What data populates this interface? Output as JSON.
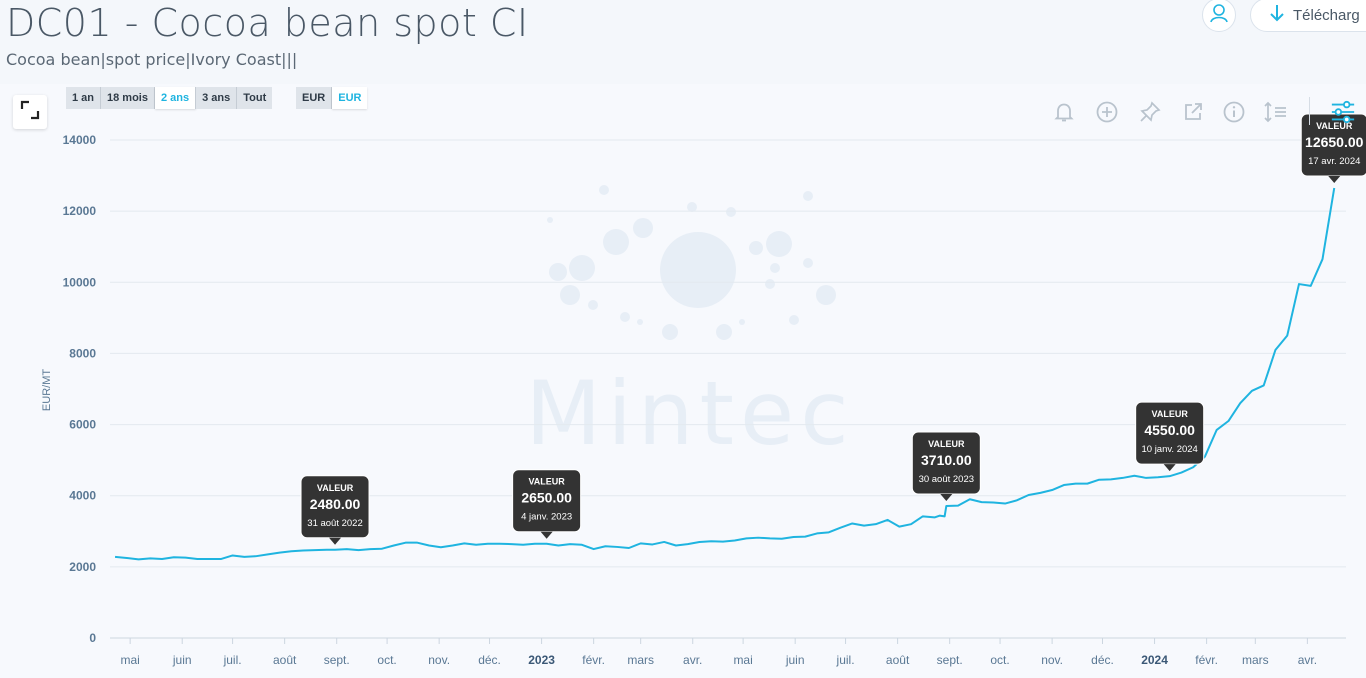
{
  "header": {
    "title": "DC01 - Cocoa bean spot CI",
    "subtitle": "Cocoa bean|spot price|Ivory Coast|||",
    "download_label": "Télécharg"
  },
  "toolbar": {
    "ranges": [
      "1 an",
      "18 mois",
      "2 ans",
      "3 ans",
      "Tout"
    ],
    "active_range": "2 ans",
    "currencies": [
      "EUR",
      "EUR"
    ],
    "active_currency_index": 1,
    "icons": [
      "bell-icon",
      "add-circle-icon",
      "pin-icon",
      "external-link-icon",
      "info-icon",
      "sort-lines-icon",
      "settings-sliders-icon"
    ]
  },
  "colors": {
    "line": "#1fb4e0",
    "tooltip_bg": "#333333",
    "accent": "#1fb4e0",
    "watermark": "#e7eef6"
  },
  "watermark": "Mintec",
  "chart_data": {
    "type": "line",
    "ylabel": "EUR/MT",
    "ylim": [
      0,
      14000
    ],
    "yticks": [
      0,
      2000,
      4000,
      6000,
      8000,
      10000,
      12000,
      14000
    ],
    "xlim": [
      "2022-04-19",
      "2024-04-24"
    ],
    "xticks": [
      {
        "label": "mai",
        "date": "2022-05-01",
        "bold": false
      },
      {
        "label": "juin",
        "date": "2022-06-01",
        "bold": false
      },
      {
        "label": "juil.",
        "date": "2022-07-01",
        "bold": false
      },
      {
        "label": "août",
        "date": "2022-08-01",
        "bold": false
      },
      {
        "label": "sept.",
        "date": "2022-09-01",
        "bold": false
      },
      {
        "label": "oct.",
        "date": "2022-10-01",
        "bold": false
      },
      {
        "label": "nov.",
        "date": "2022-11-01",
        "bold": false
      },
      {
        "label": "déc.",
        "date": "2022-12-01",
        "bold": false
      },
      {
        "label": "2023",
        "date": "2023-01-01",
        "bold": true
      },
      {
        "label": "févr.",
        "date": "2023-02-01",
        "bold": false
      },
      {
        "label": "mars",
        "date": "2023-03-01",
        "bold": false
      },
      {
        "label": "avr.",
        "date": "2023-04-01",
        "bold": false
      },
      {
        "label": "mai",
        "date": "2023-05-01",
        "bold": false
      },
      {
        "label": "juin",
        "date": "2023-06-01",
        "bold": false
      },
      {
        "label": "juil.",
        "date": "2023-07-01",
        "bold": false
      },
      {
        "label": "août",
        "date": "2023-08-01",
        "bold": false
      },
      {
        "label": "sept.",
        "date": "2023-09-01",
        "bold": false
      },
      {
        "label": "oct.",
        "date": "2023-10-01",
        "bold": false
      },
      {
        "label": "nov.",
        "date": "2023-11-01",
        "bold": false
      },
      {
        "label": "déc.",
        "date": "2023-12-01",
        "bold": false
      },
      {
        "label": "2024",
        "date": "2024-01-01",
        "bold": true
      },
      {
        "label": "févr.",
        "date": "2024-02-01",
        "bold": false
      },
      {
        "label": "mars",
        "date": "2024-03-01",
        "bold": false
      },
      {
        "label": "avr.",
        "date": "2024-04-01",
        "bold": false
      }
    ],
    "series": [
      {
        "points": [
          [
            "2022-04-22",
            2280
          ],
          [
            "2022-04-29",
            2250
          ],
          [
            "2022-05-06",
            2210
          ],
          [
            "2022-05-13",
            2240
          ],
          [
            "2022-05-20",
            2220
          ],
          [
            "2022-05-27",
            2270
          ],
          [
            "2022-06-03",
            2260
          ],
          [
            "2022-06-10",
            2220
          ],
          [
            "2022-06-17",
            2220
          ],
          [
            "2022-06-24",
            2220
          ],
          [
            "2022-07-01",
            2320
          ],
          [
            "2022-07-08",
            2280
          ],
          [
            "2022-07-15",
            2300
          ],
          [
            "2022-07-22",
            2350
          ],
          [
            "2022-07-29",
            2400
          ],
          [
            "2022-08-05",
            2440
          ],
          [
            "2022-08-12",
            2460
          ],
          [
            "2022-08-19",
            2470
          ],
          [
            "2022-08-26",
            2480
          ],
          [
            "2022-08-31",
            2480
          ],
          [
            "2022-09-07",
            2500
          ],
          [
            "2022-09-14",
            2470
          ],
          [
            "2022-09-21",
            2500
          ],
          [
            "2022-09-28",
            2510
          ],
          [
            "2022-10-05",
            2600
          ],
          [
            "2022-10-12",
            2680
          ],
          [
            "2022-10-19",
            2680
          ],
          [
            "2022-10-26",
            2600
          ],
          [
            "2022-11-02",
            2550
          ],
          [
            "2022-11-09",
            2600
          ],
          [
            "2022-11-16",
            2660
          ],
          [
            "2022-11-23",
            2620
          ],
          [
            "2022-11-30",
            2650
          ],
          [
            "2022-12-07",
            2650
          ],
          [
            "2022-12-14",
            2640
          ],
          [
            "2022-12-21",
            2620
          ],
          [
            "2022-12-28",
            2650
          ],
          [
            "2023-01-04",
            2650
          ],
          [
            "2023-01-11",
            2600
          ],
          [
            "2023-01-18",
            2640
          ],
          [
            "2023-01-25",
            2620
          ],
          [
            "2023-02-01",
            2500
          ],
          [
            "2023-02-08",
            2580
          ],
          [
            "2023-02-15",
            2560
          ],
          [
            "2023-02-22",
            2530
          ],
          [
            "2023-03-01",
            2660
          ],
          [
            "2023-03-08",
            2630
          ],
          [
            "2023-03-15",
            2700
          ],
          [
            "2023-03-22",
            2600
          ],
          [
            "2023-03-29",
            2640
          ],
          [
            "2023-04-05",
            2700
          ],
          [
            "2023-04-12",
            2720
          ],
          [
            "2023-04-19",
            2710
          ],
          [
            "2023-04-26",
            2740
          ],
          [
            "2023-05-03",
            2800
          ],
          [
            "2023-05-10",
            2820
          ],
          [
            "2023-05-17",
            2800
          ],
          [
            "2023-05-24",
            2790
          ],
          [
            "2023-05-31",
            2840
          ],
          [
            "2023-06-07",
            2850
          ],
          [
            "2023-06-14",
            2940
          ],
          [
            "2023-06-21",
            2970
          ],
          [
            "2023-06-28",
            3100
          ],
          [
            "2023-07-05",
            3220
          ],
          [
            "2023-07-12",
            3160
          ],
          [
            "2023-07-19",
            3200
          ],
          [
            "2023-07-26",
            3320
          ],
          [
            "2023-08-02",
            3130
          ],
          [
            "2023-08-09",
            3200
          ],
          [
            "2023-08-16",
            3420
          ],
          [
            "2023-08-23",
            3390
          ],
          [
            "2023-08-26",
            3440
          ],
          [
            "2023-08-29",
            3420
          ],
          [
            "2023-08-30",
            3710
          ],
          [
            "2023-09-06",
            3720
          ],
          [
            "2023-09-13",
            3900
          ],
          [
            "2023-09-20",
            3820
          ],
          [
            "2023-09-27",
            3810
          ],
          [
            "2023-10-04",
            3780
          ],
          [
            "2023-10-11",
            3870
          ],
          [
            "2023-10-18",
            4020
          ],
          [
            "2023-10-25",
            4080
          ],
          [
            "2023-11-01",
            4160
          ],
          [
            "2023-11-08",
            4300
          ],
          [
            "2023-11-15",
            4340
          ],
          [
            "2023-11-22",
            4340
          ],
          [
            "2023-11-29",
            4450
          ],
          [
            "2023-12-06",
            4460
          ],
          [
            "2023-12-13",
            4500
          ],
          [
            "2023-12-20",
            4560
          ],
          [
            "2023-12-27",
            4500
          ],
          [
            "2024-01-03",
            4520
          ],
          [
            "2024-01-10",
            4550
          ],
          [
            "2024-01-17",
            4650
          ],
          [
            "2024-01-24",
            4800
          ],
          [
            "2024-01-31",
            5100
          ],
          [
            "2024-02-07",
            5850
          ],
          [
            "2024-02-14",
            6100
          ],
          [
            "2024-02-21",
            6600
          ],
          [
            "2024-02-28",
            6950
          ],
          [
            "2024-03-06",
            7100
          ],
          [
            "2024-03-13",
            8100
          ],
          [
            "2024-03-20",
            8500
          ],
          [
            "2024-03-27",
            9950
          ],
          [
            "2024-04-03",
            9900
          ],
          [
            "2024-04-10",
            10650
          ],
          [
            "2024-04-17",
            12650
          ]
        ]
      }
    ],
    "annotations": [
      {
        "label": "VALEUR",
        "value": "2480.00",
        "date_label": "31 août 2022",
        "date": "2022-08-31",
        "y": 2480
      },
      {
        "label": "VALEUR",
        "value": "2650.00",
        "date_label": "4 janv. 2023",
        "date": "2023-01-04",
        "y": 2650
      },
      {
        "label": "VALEUR",
        "value": "3710.00",
        "date_label": "30 août 2023",
        "date": "2023-08-30",
        "y": 3710
      },
      {
        "label": "VALEUR",
        "value": "4550.00",
        "date_label": "10 janv. 2024",
        "date": "2024-01-10",
        "y": 4550
      },
      {
        "label": "VALEUR",
        "value": "12650.00",
        "date_label": "17 avr. 2024",
        "date": "2024-04-17",
        "y": 12650
      }
    ]
  }
}
